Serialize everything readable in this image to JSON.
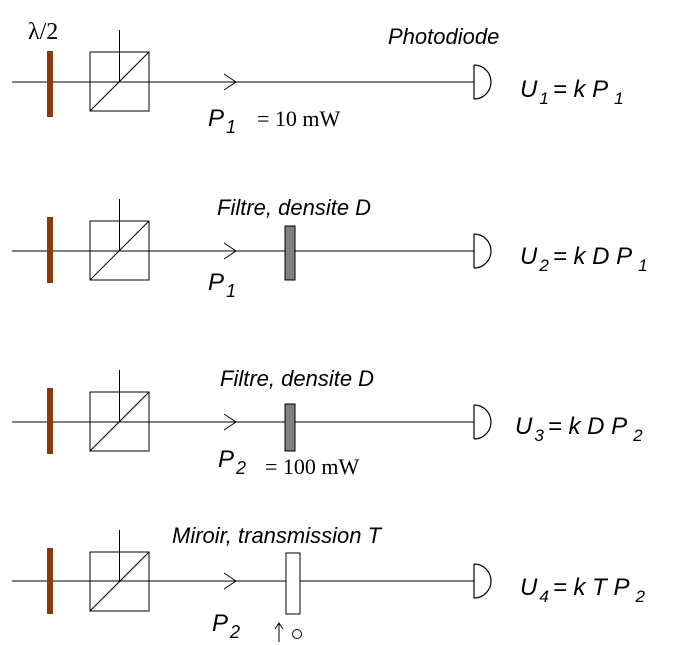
{
  "colors": {
    "waveplate": "#8B3A10",
    "filter": "#808080",
    "line": "#000000",
    "background": "#ffffff"
  },
  "lambda_label": "λ/2",
  "rows": [
    {
      "element_label": "Photodiode",
      "element": "none",
      "power_symbol": "P",
      "power_sub": "1",
      "power_value": "= 10 mW",
      "eq": {
        "lhs": "U",
        "lhs_sub": "1",
        "rhs": "= k P",
        "rhs_sub": "1"
      }
    },
    {
      "element_label": "Filtre, densite D",
      "element": "filter",
      "power_symbol": "P",
      "power_sub": "1",
      "power_value": "",
      "eq": {
        "lhs": "U",
        "lhs_sub": "2",
        "rhs": "= k D P",
        "rhs_sub": "1"
      }
    },
    {
      "element_label": "Filtre, densite D",
      "element": "filter",
      "power_symbol": "P",
      "power_sub": "2",
      "power_value": "= 100 mW",
      "eq": {
        "lhs": "U",
        "lhs_sub": "3",
        "rhs": "= k D P",
        "rhs_sub": "2"
      }
    },
    {
      "element_label": "Miroir, transmission T",
      "element": "mirror",
      "power_symbol": "P",
      "power_sub": "2",
      "power_value": "",
      "eq": {
        "lhs": "U",
        "lhs_sub": "4",
        "rhs": "= k T P",
        "rhs_sub": "2"
      }
    }
  ]
}
